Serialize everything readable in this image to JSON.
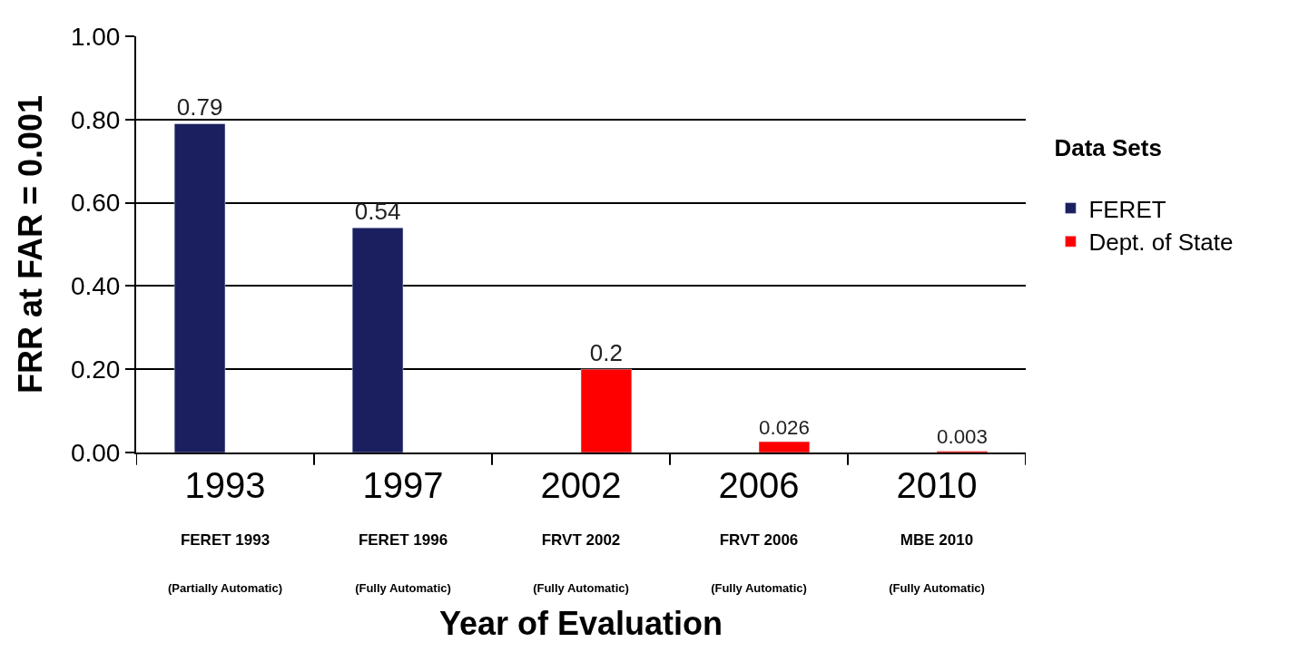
{
  "chart_data": {
    "type": "bar",
    "xlabel": "Year of Evaluation",
    "ylabel": "FRR at FAR = 0.001",
    "legend_title": "Data Sets",
    "categories": [
      "1993\nFERET 1993\n(Partially Automatic)",
      "1997\nFERET 1996\n(Fully Automatic)",
      "2002\nFRVT 2002\n(Fully Automatic)",
      "2006\nFRVT 2006\n(Fully Automatic)",
      "2010\nMBE 2010\n(Fully Automatic)"
    ],
    "series": [
      {
        "name": "FERET",
        "color": "#1b1f5f",
        "values": [
          0.79,
          0.54,
          null,
          null,
          null
        ]
      },
      {
        "name": "Dept. of State",
        "color": "#ff0000",
        "values": [
          null,
          null,
          0.2,
          0.026,
          0.003
        ]
      }
    ],
    "ylim": [
      0,
      1
    ],
    "yticks": [
      {
        "value": 0,
        "label": "0.00"
      },
      {
        "value": 0.2,
        "label": "0.20"
      },
      {
        "value": 0.4,
        "label": "0.40"
      },
      {
        "value": 0.6,
        "label": "0.60"
      },
      {
        "value": 0.8,
        "label": "0.80"
      },
      {
        "value": 1,
        "label": "1.00"
      }
    ],
    "grid": "y",
    "legend": "right",
    "data_labels": true
  }
}
